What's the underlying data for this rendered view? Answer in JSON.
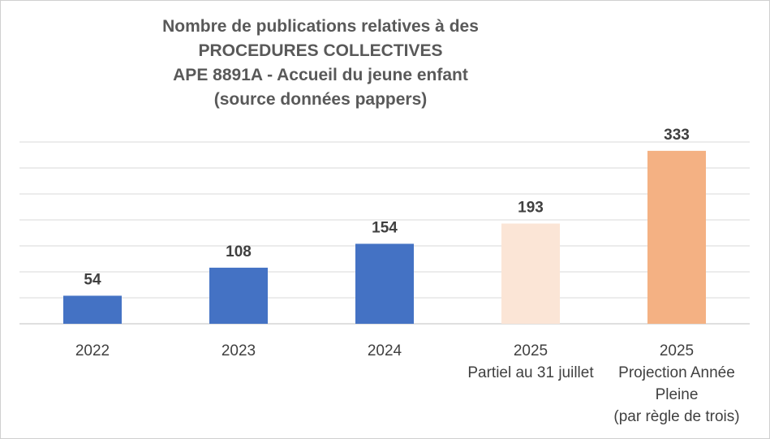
{
  "chart_data": {
    "type": "bar",
    "title_lines": [
      "Nombre de publications relatives à des",
      "PROCEDURES COLLECTIVES",
      "APE 8891A - Accueil du jeune enfant",
      "(source données pappers)"
    ],
    "categories": [
      [
        "2022"
      ],
      [
        "2023"
      ],
      [
        "2024"
      ],
      [
        "2025",
        "Partiel au 31 juillet"
      ],
      [
        "2025",
        "Projection Année",
        "Pleine",
        "(par règle de trois)"
      ]
    ],
    "values": [
      54,
      108,
      154,
      193,
      333
    ],
    "data_labels": [
      "54",
      "108",
      "154",
      "193",
      "333"
    ],
    "bar_colors": [
      "#4472c4",
      "#4472c4",
      "#4472c4",
      "#fbe5d6",
      "#f4b183"
    ],
    "ylim": [
      0,
      350
    ],
    "grid": true,
    "legend": "none",
    "xlabel": "",
    "ylabel": ""
  }
}
